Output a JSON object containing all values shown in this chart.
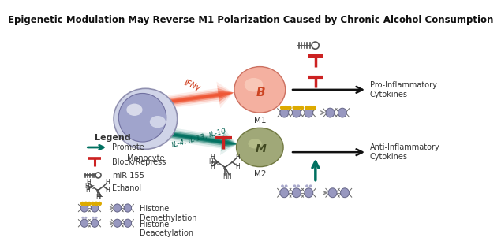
{
  "title": "Epigenetic Modulation May Reverse M1 Polarization Caused by Chronic Alcohol Consumption",
  "title_fontsize": 8.5,
  "bg_color": "#ffffff",
  "monocyte_label": "Monocyte",
  "m1_label": "M1",
  "m2_label": "M2",
  "ifn_label": "IFNγ",
  "il_label": "IL-4, IL-13, IL-10",
  "pro_inflam_label": "Pro-Inflammatory\nCytokines",
  "anti_inflam_label": "Anti-Inflammatory\nCytokines",
  "promote_color": "#007060",
  "block_color": "#cc2222",
  "legend_promote": "Promote",
  "legend_block": "Block/Repress",
  "legend_mir155": "miR-155",
  "legend_ethanol": "Ethanol",
  "legend_hd": "Histone\nDemethylation",
  "legend_hdac": "Histone\nDeacetylation",
  "legend_title": "Legend"
}
